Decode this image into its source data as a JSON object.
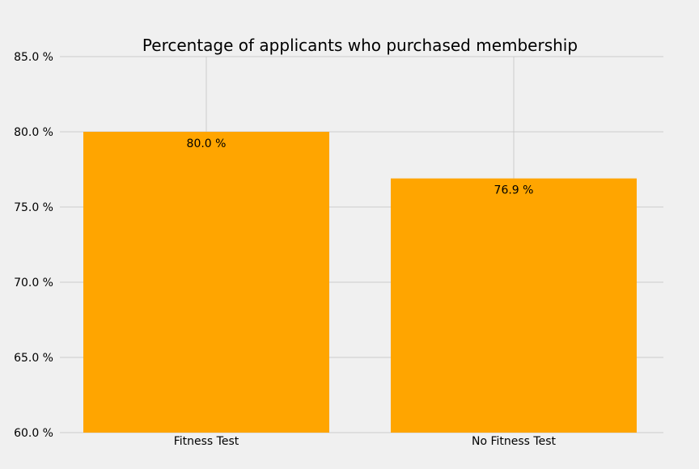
{
  "chart_data": {
    "type": "bar",
    "title": "Percentage of applicants who purchased membership",
    "xlabel": "",
    "ylabel": "",
    "categories": [
      "Fitness Test",
      "No Fitness Test"
    ],
    "values": [
      80.0,
      76.9
    ],
    "data_labels": [
      "80.0 %",
      "76.9 %"
    ],
    "ylim": [
      60,
      85
    ],
    "yticks": [
      60,
      65,
      70,
      75,
      80,
      85
    ],
    "ytick_labels": [
      "60.0 %",
      "65.0 %",
      "70.0 %",
      "75.0 %",
      "80.0 %",
      "85.0 %"
    ],
    "grid": true,
    "bar_color": "#ffa500",
    "background_color": "#f0f0f0",
    "grid_color": "#cbcbcb"
  }
}
